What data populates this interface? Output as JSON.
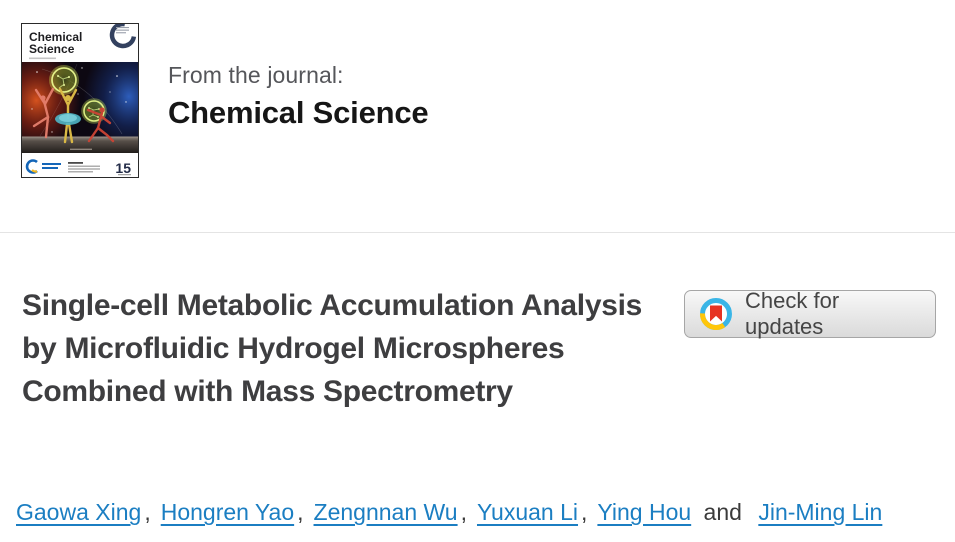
{
  "journal": {
    "from_label": "From the journal:",
    "name": "Chemical Science",
    "cover": {
      "masthead_line1": "Chemical",
      "masthead_line2": "Science",
      "volume_number": "15"
    }
  },
  "article": {
    "title": "Single-cell Metabolic Accumulation Analysis by Microfluidic Hydrogel Microspheres Combined with Mass Spectrometry",
    "check_updates_label": "Check for updates"
  },
  "authors": {
    "names": [
      "Gaowa Xing",
      "Hongren Yao",
      "Zengnnan Wu",
      "Yuxuan Li",
      "Ying Hou",
      "Jin-Ming Lin"
    ],
    "separator": ",",
    "conjunction": "and"
  },
  "colors": {
    "author_link": "#1b7ec2",
    "title_text": "#3e3e40",
    "crossmark_ring_blue": "#3ab5e6",
    "crossmark_ring_yellow": "#ffc60b",
    "crossmark_bookmark_red": "#e63323"
  }
}
